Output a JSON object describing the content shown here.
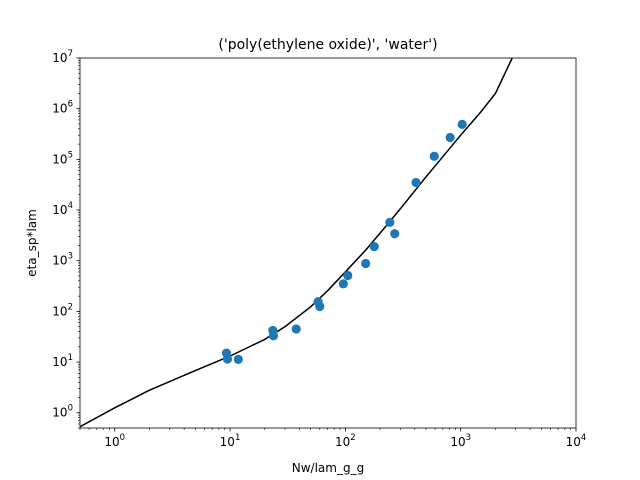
{
  "chart_data": {
    "type": "scatter",
    "title": "('poly(ethylene oxide)', 'water')",
    "xlabel": "Nw/lam_g_g",
    "ylabel": "eta_sp*lam",
    "xscale": "log",
    "yscale": "log",
    "xlim": [
      0.5,
      10000
    ],
    "ylim": [
      0.5,
      10000000
    ],
    "grid": false,
    "x_ticks": [
      {
        "value": 1,
        "exp": "0"
      },
      {
        "value": 10,
        "exp": "1"
      },
      {
        "value": 100,
        "exp": "2"
      },
      {
        "value": 1000,
        "exp": "3"
      },
      {
        "value": 10000,
        "exp": "4"
      }
    ],
    "y_ticks": [
      {
        "value": 1,
        "exp": "0"
      },
      {
        "value": 10,
        "exp": "1"
      },
      {
        "value": 100,
        "exp": "2"
      },
      {
        "value": 1000,
        "exp": "3"
      },
      {
        "value": 10000,
        "exp": "4"
      },
      {
        "value": 100000,
        "exp": "5"
      },
      {
        "value": 1000000,
        "exp": "6"
      },
      {
        "value": 10000000,
        "exp": "7"
      }
    ],
    "tick_base": "10",
    "series": [
      {
        "kind": "scatter",
        "color": "#1f77b4",
        "points": [
          [
            9.3,
            15
          ],
          [
            9.5,
            11.5
          ],
          [
            11.8,
            11.3
          ],
          [
            23.5,
            42
          ],
          [
            23.8,
            33
          ],
          [
            37.5,
            45
          ],
          [
            58,
            155
          ],
          [
            60,
            125
          ],
          [
            96,
            350
          ],
          [
            105,
            510
          ],
          [
            150,
            880
          ],
          [
            178,
            1900
          ],
          [
            243,
            5700
          ],
          [
            268,
            3400
          ],
          [
            410,
            35000
          ],
          [
            590,
            115000
          ],
          [
            810,
            270000
          ],
          [
            1030,
            490000
          ]
        ]
      },
      {
        "kind": "line",
        "color": "#000000",
        "points": [
          [
            0.5,
            0.53
          ],
          [
            1,
            1.25
          ],
          [
            2,
            2.78
          ],
          [
            5,
            6.8
          ],
          [
            10,
            13.1
          ],
          [
            20,
            28
          ],
          [
            30,
            50
          ],
          [
            50,
            123
          ],
          [
            70,
            255
          ],
          [
            100,
            600
          ],
          [
            150,
            1620
          ],
          [
            200,
            3500
          ],
          [
            300,
            10600
          ],
          [
            500,
            45000
          ],
          [
            700,
            113000
          ],
          [
            1000,
            300000
          ],
          [
            1500,
            870000
          ],
          [
            2000,
            2000000
          ],
          [
            2800,
            10000000
          ]
        ]
      }
    ]
  }
}
